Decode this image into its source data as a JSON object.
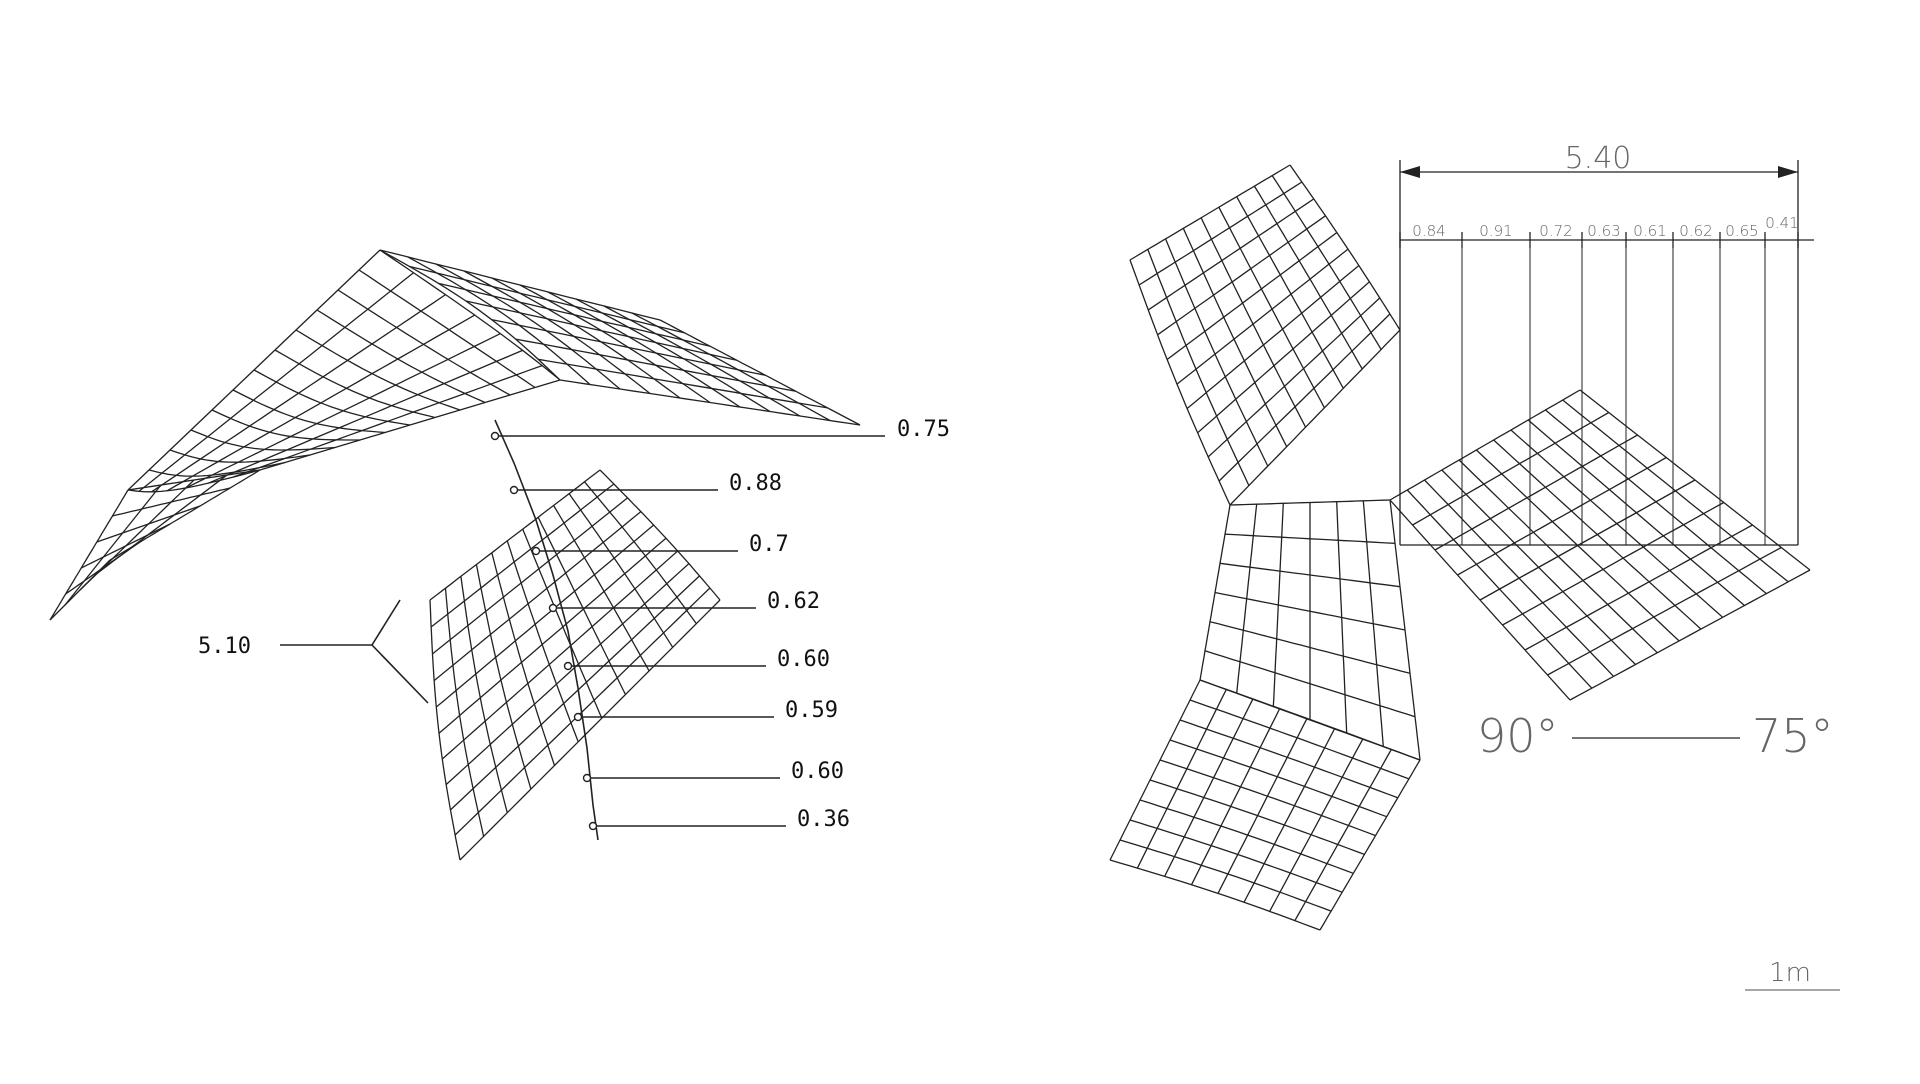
{
  "left_panel": {
    "span_label": "5.10",
    "spacing_labels": [
      "0.75",
      "0.88",
      "0.7",
      "0.62",
      "0.60",
      "0.59",
      "0.60",
      "0.36"
    ]
  },
  "right_panel": {
    "total_dimension": "5.40",
    "segment_dimensions": [
      "0.84",
      "0.91",
      "0.72",
      "0.63",
      "0.61",
      "0.62",
      "0.65",
      "0.41"
    ],
    "angle_start": "90°",
    "angle_end": "75°"
  },
  "scale_bar": {
    "label": "1m"
  },
  "colors": {
    "line": "#222222",
    "thin_text": "#666666",
    "background": "#ffffff"
  }
}
